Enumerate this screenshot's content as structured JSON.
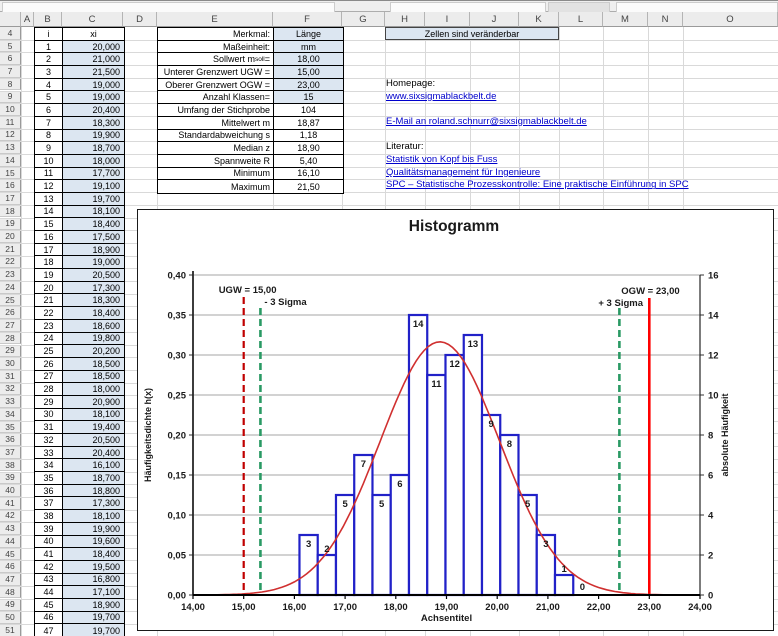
{
  "sheet": {
    "column_headers": [
      "A",
      "B",
      "C",
      "D",
      "E",
      "F",
      "G",
      "H",
      "I",
      "J",
      "K",
      "L",
      "M",
      "N",
      "O"
    ],
    "row_first": 4,
    "row_last": 51
  },
  "data_table": {
    "col_i_header": "i",
    "col_xi_header": "xi",
    "rows": [
      [
        1,
        "20,000"
      ],
      [
        2,
        "21,000"
      ],
      [
        3,
        "21,500"
      ],
      [
        4,
        "19,000"
      ],
      [
        5,
        "19,000"
      ],
      [
        6,
        "20,400"
      ],
      [
        7,
        "18,300"
      ],
      [
        8,
        "19,900"
      ],
      [
        9,
        "18,700"
      ],
      [
        10,
        "18,000"
      ],
      [
        11,
        "17,700"
      ],
      [
        12,
        "19,100"
      ],
      [
        13,
        "19,700"
      ],
      [
        14,
        "18,100"
      ],
      [
        15,
        "18,400"
      ],
      [
        16,
        "17,500"
      ],
      [
        17,
        "18,900"
      ],
      [
        18,
        "19,000"
      ],
      [
        19,
        "20,500"
      ],
      [
        20,
        "17,300"
      ],
      [
        21,
        "18,300"
      ],
      [
        22,
        "18,400"
      ],
      [
        23,
        "18,600"
      ],
      [
        24,
        "19,800"
      ],
      [
        25,
        "20,200"
      ],
      [
        26,
        "18,500"
      ],
      [
        27,
        "18,500"
      ],
      [
        28,
        "18,000"
      ],
      [
        29,
        "20,900"
      ],
      [
        30,
        "18,100"
      ],
      [
        31,
        "19,400"
      ],
      [
        32,
        "20,500"
      ],
      [
        33,
        "20,400"
      ],
      [
        34,
        "16,100"
      ],
      [
        35,
        "18,700"
      ],
      [
        36,
        "18,800"
      ],
      [
        37,
        "17,300"
      ],
      [
        38,
        "18,100"
      ],
      [
        39,
        "19,900"
      ],
      [
        40,
        "19,600"
      ],
      [
        41,
        "18,400"
      ],
      [
        42,
        "19,500"
      ],
      [
        43,
        "16,800"
      ],
      [
        44,
        "17,100"
      ],
      [
        45,
        "18,900"
      ],
      [
        46,
        "19,700"
      ],
      [
        47,
        "19,700"
      ]
    ]
  },
  "stats_table": {
    "rows": [
      {
        "label": "Merkmal:",
        "value": "Länge",
        "editable": true
      },
      {
        "label": "Maßeinheit:",
        "value": "mm",
        "editable": true
      },
      {
        "label": "Sollwert m",
        "sub": "soll",
        "suffix": " =",
        "value": "18,00",
        "editable": true
      },
      {
        "label": "Unterer Grenzwert UGW =",
        "value": "15,00",
        "editable": true
      },
      {
        "label": "Oberer Grenzwert OGW =",
        "value": "23,00",
        "editable": true
      },
      {
        "label": "Anzahl Klassen=",
        "value": "15",
        "editable": true
      },
      {
        "label": "Umfang der Stichprobe",
        "value": "104",
        "editable": false
      },
      {
        "label": "Mittelwert m",
        "value": "18,87",
        "editable": false
      },
      {
        "label": "Standardabweichung s",
        "value": "1,18",
        "editable": false
      },
      {
        "label": "Median z",
        "value": "18,90",
        "editable": false
      },
      {
        "label": "Spannweite R",
        "value": "5,40",
        "editable": false
      },
      {
        "label": "Minimum",
        "value": "16,10",
        "editable": false
      },
      {
        "label": "Maximum",
        "value": "21,50",
        "editable": false
      }
    ]
  },
  "note_box": {
    "text": "Zellen sind veränderbar"
  },
  "info": {
    "homepage_label": "Homepage:",
    "homepage_link": "www.sixsigmablackbelt.de",
    "email_link": "E-Mail an roland.schnurr@sixsigmablackbelt.de",
    "literatur_label": "Literatur:",
    "books": [
      "Statistik von Kopf bis Fuss",
      "Qualitätsmanagement für Ingenieure",
      "SPC – Statistische Prozesskontrolle: Eine praktische Einführung in SPC"
    ]
  },
  "colors": {
    "editable_cell": "#dce6f1",
    "link": "#0000cc",
    "bar_stroke": "#2121c8",
    "curve": "#d03030",
    "ugw_line": "#c00000",
    "sigma_line": "#2a9a64",
    "ogw_line": "#ff0000",
    "gridline": "#a6a6a6"
  },
  "chart_data": {
    "type": "histogram",
    "title": "Histogramm",
    "xlabel": "Achsentitel",
    "ylabel_left": "Häufigkeitsdichte h(x)",
    "ylabel_right": "absolute Häufigkeit",
    "xlim": [
      14,
      24
    ],
    "ylim_left": [
      0,
      0.4
    ],
    "ylim_right": [
      0,
      16
    ],
    "x_ticks": [
      "14,00",
      "15,00",
      "16,00",
      "17,00",
      "18,00",
      "19,00",
      "20,00",
      "21,00",
      "22,00",
      "23,00",
      "24,00"
    ],
    "y_left_ticks": [
      "0,40",
      "0,35",
      "0,30",
      "0,25",
      "0,20",
      "0,15",
      "0,10",
      "0,05",
      "0,00"
    ],
    "y_right_ticks": [
      "16",
      "14",
      "12",
      "10",
      "8",
      "6",
      "4",
      "2",
      "0"
    ],
    "bin_start": 16.1,
    "bin_width": 0.36,
    "counts": [
      3,
      2,
      5,
      7,
      5,
      6,
      14,
      11,
      12,
      13,
      9,
      8,
      5,
      3,
      1,
      0
    ],
    "normal_curve": {
      "mean": 18.87,
      "sd": 1.18,
      "n": 104
    },
    "ref_lines": [
      {
        "id": "ugw",
        "x": 15.0,
        "label": "UGW = 15,00",
        "style": "dashed",
        "color": "#c00000"
      },
      {
        "id": "minus3sigma",
        "x": 15.33,
        "label": "- 3 Sigma",
        "style": "dashed",
        "color": "#2a9a64"
      },
      {
        "id": "plus3sigma",
        "x": 22.41,
        "label": "+ 3 Sigma",
        "style": "dashed",
        "color": "#2a9a64"
      },
      {
        "id": "ogw",
        "x": 23.0,
        "label": "OGW = 23,00",
        "style": "solid",
        "color": "#ff0000"
      }
    ],
    "grid": "horizontal",
    "legend": null
  }
}
